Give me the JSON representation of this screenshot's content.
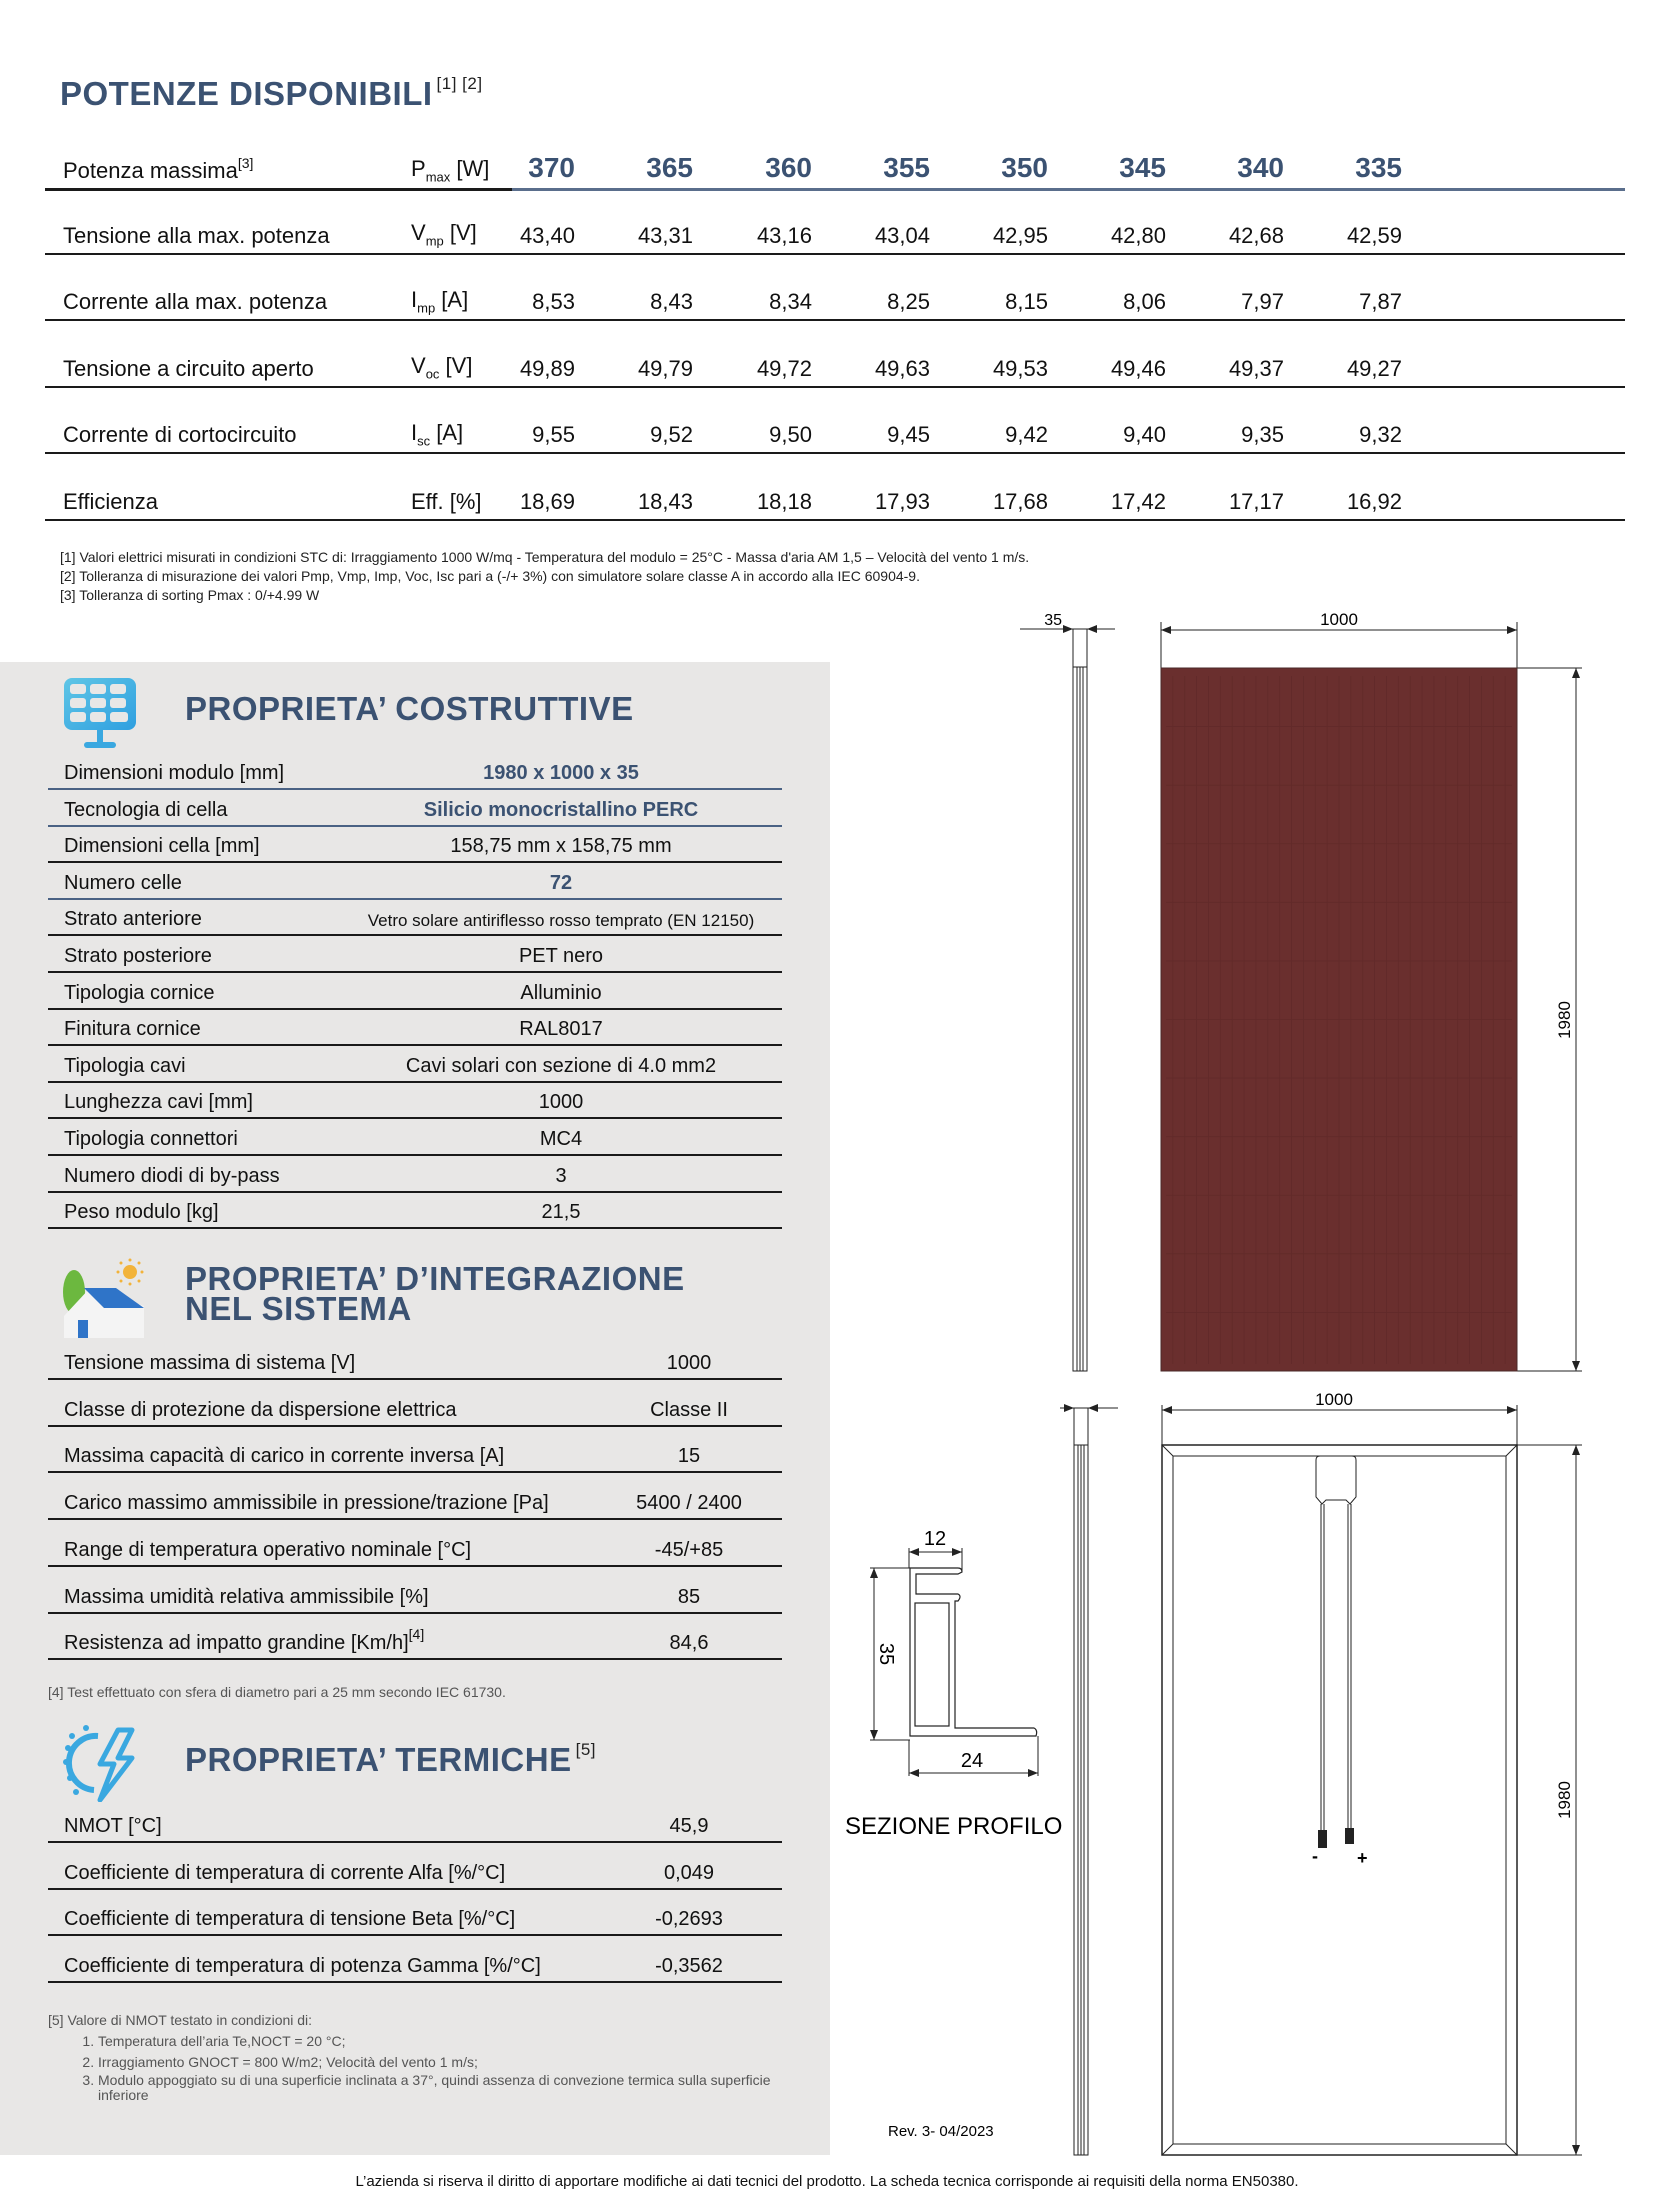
{
  "powers": {
    "title": "POTENZE DISPONIBILI",
    "title_sup": "[1] [2]",
    "rows": [
      {
        "label": "Potenza massima",
        "label_sup": "[3]",
        "sym": "P",
        "sub": "max",
        "unit": " [W]",
        "values": [
          "370",
          "365",
          "360",
          "355",
          "350",
          "345",
          "340",
          "335"
        ]
      },
      {
        "label": "Tensione alla max. potenza",
        "label_sup": "",
        "sym": "V",
        "sub": "mp",
        "unit": " [V]",
        "values": [
          "43,40",
          "43,31",
          "43,16",
          "43,04",
          "42,95",
          "42,80",
          "42,68",
          "42,59"
        ]
      },
      {
        "label": "Corrente alla max. potenza",
        "label_sup": "",
        "sym": "I",
        "sub": "mp",
        "unit": " [A]",
        "values": [
          "8,53",
          "8,43",
          "8,34",
          "8,25",
          "8,15",
          "8,06",
          "7,97",
          "7,87"
        ]
      },
      {
        "label": "Tensione a circuito aperto",
        "label_sup": "",
        "sym": "V",
        "sub": "oc",
        "unit": " [V]",
        "values": [
          "49,89",
          "49,79",
          "49,72",
          "49,63",
          "49,53",
          "49,46",
          "49,37",
          "49,27"
        ]
      },
      {
        "label": "Corrente di cortocircuito",
        "label_sup": "",
        "sym": "I",
        "sub": "sc",
        "unit": " [A]",
        "values": [
          "9,55",
          "9,52",
          "9,50",
          "9,45",
          "9,42",
          "9,40",
          "9,35",
          "9,32"
        ]
      },
      {
        "label": "Efficienza",
        "label_sup": "",
        "sym": "Eff.",
        "sub": "",
        "unit": " [%]",
        "values": [
          "18,69",
          "18,43",
          "18,18",
          "17,93",
          "17,68",
          "17,42",
          "17,17",
          "16,92"
        ]
      }
    ],
    "footnotes": [
      "[1] Valori elettrici misurati in condizioni STC di: Irraggiamento 1000 W/mq - Temperatura del modulo = 25°C - Massa d'aria AM 1,5 – Velocità del vento 1 m/s.",
      "[2] Tolleranza di misurazione dei valori Pmp, Vmp, Imp, Voc, Isc pari a (-/+ 3%) con simulatore solare classe A in accordo alla IEC 60904-9.",
      "[3] Tolleranza di sorting Pmax : 0/+4.99 W"
    ]
  },
  "construction": {
    "title": "PROPRIETA’ COSTRUTTIVE",
    "icon": "solar-panel-icon",
    "rows": [
      {
        "label": "Dimensioni modulo [mm]",
        "value": "1980 x 1000 x 35",
        "highlight": true
      },
      {
        "label": "Tecnologia di cella",
        "value": "Silicio monocristallino PERC",
        "highlight": true
      },
      {
        "label": "Dimensioni cella [mm]",
        "value": "158,75 mm x 158,75 mm",
        "highlight": false
      },
      {
        "label": "Numero celle",
        "value": "72",
        "highlight": true
      },
      {
        "label": "Strato anteriore",
        "value": "Vetro solare antiriflesso rosso temprato (EN 12150)",
        "highlight": false
      },
      {
        "label": "Strato posteriore",
        "value": "PET nero",
        "highlight": false
      },
      {
        "label": "Tipologia cornice",
        "value": "Alluminio",
        "highlight": false
      },
      {
        "label": "Finitura cornice",
        "value": "RAL8017",
        "highlight": false
      },
      {
        "label": "Tipologia cavi",
        "value": "Cavi solari con sezione di 4.0 mm2",
        "highlight": false
      },
      {
        "label": "Lunghezza cavi [mm]",
        "value": "1000",
        "highlight": false
      },
      {
        "label": "Tipologia connettori",
        "value": "MC4",
        "highlight": false
      },
      {
        "label": "Numero diodi di by-pass",
        "value": "3",
        "highlight": false
      },
      {
        "label": "Peso modulo [kg]",
        "value": "21,5",
        "highlight": false
      }
    ]
  },
  "integration": {
    "title_line1": "PROPRIETA’ D’INTEGRAZIONE",
    "title_line2": "NEL SISTEMA",
    "icon": "house-solar-icon",
    "rows": [
      {
        "label": "Tensione massima di sistema [V]",
        "sup": "",
        "value": "1000"
      },
      {
        "label": "Classe di protezione da dispersione elettrica",
        "sup": "",
        "value": "Classe II"
      },
      {
        "label": "Massima capacità di carico in corrente inversa [A]",
        "sup": "",
        "value": "15"
      },
      {
        "label": "Carico massimo ammissibile in pressione/trazione [Pa]",
        "sup": "",
        "value": "5400 / 2400"
      },
      {
        "label": "Range di temperatura operativo nominale [°C]",
        "sup": "",
        "value": "-45/+85"
      },
      {
        "label": "Massima umidità relativa ammissibile [%]",
        "sup": "",
        "value": "85"
      },
      {
        "label": "Resistenza ad impatto grandine [Km/h]",
        "sup": "[4]",
        "value": "84,6"
      }
    ],
    "footnote": "[4] Test effettuato con sfera di diametro pari a 25 mm secondo IEC 61730."
  },
  "thermal": {
    "title": "PROPRIETA’ TERMICHE",
    "title_sup": "[5]",
    "icon": "sun-lightning-icon",
    "rows": [
      {
        "label": "NMOT [°C]",
        "value": "45,9"
      },
      {
        "label": "Coefficiente di temperatura di corrente Alfa [%/°C]",
        "value": "0,049"
      },
      {
        "label": "Coefficiente di temperatura di tensione Beta [%/°C]",
        "value": "-0,2693"
      },
      {
        "label": "Coefficiente di temperatura di potenza Gamma [%/°C]",
        "value": "-0,3562"
      }
    ],
    "footnote_title": "[5] Valore di NMOT testato in condizioni di:",
    "footnote_items": [
      "Temperatura dell’aria Te,NOCT = 20 °C;",
      "Irraggiamento GNOCT = 800 W/m2; Velocità del vento 1 m/s;",
      "Modulo appoggiato su di una superficie inclinata a 37°, quindi assenza di convezione termica sulla superficie inferiore"
    ]
  },
  "drawing": {
    "front_width": "1000",
    "side_depth": "35",
    "height": "1980",
    "back_width": "1000",
    "back_height": "1980",
    "profile_top": "12",
    "profile_height": "35",
    "profile_base": "24",
    "profile_label": "SEZIONE PROFILO",
    "minus": "-",
    "plus": "+",
    "panel_color": "#6a2f2e"
  },
  "revision": "Rev. 3- 04/2023",
  "footer": "L’azienda si riserva il diritto di apportare modifiche ai dati tecnici del prodotto. La scheda tecnica corrisponde ai requisiti della norma EN50380."
}
